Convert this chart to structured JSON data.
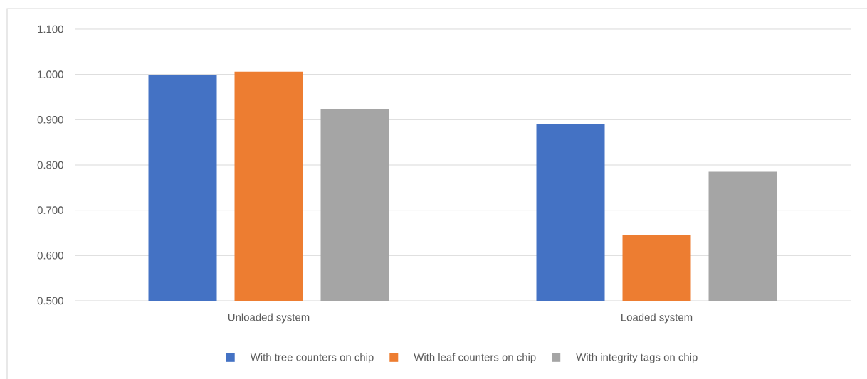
{
  "chart_data": {
    "type": "bar",
    "categories": [
      "Unloaded system",
      "Loaded system"
    ],
    "series": [
      {
        "name": "With tree counters on chip",
        "color": "#4472c4",
        "values": [
          0.998,
          0.891
        ]
      },
      {
        "name": "With leaf counters on chip",
        "color": "#ed7d31",
        "values": [
          1.006,
          0.645
        ]
      },
      {
        "name": "With integrity tags on chip",
        "color": "#a5a5a5",
        "values": [
          0.924,
          0.785
        ]
      }
    ],
    "ylim": [
      0.5,
      1.1
    ],
    "yticks": [
      {
        "value": 0.5,
        "label": "0.500"
      },
      {
        "value": 0.6,
        "label": "0.600"
      },
      {
        "value": 0.7,
        "label": "0.700"
      },
      {
        "value": 0.8,
        "label": "0.800"
      },
      {
        "value": 0.9,
        "label": "0.900"
      },
      {
        "value": 1.0,
        "label": "1.000"
      },
      {
        "value": 1.1,
        "label": "1.100"
      }
    ],
    "grid": "y",
    "legend": "bottom"
  }
}
